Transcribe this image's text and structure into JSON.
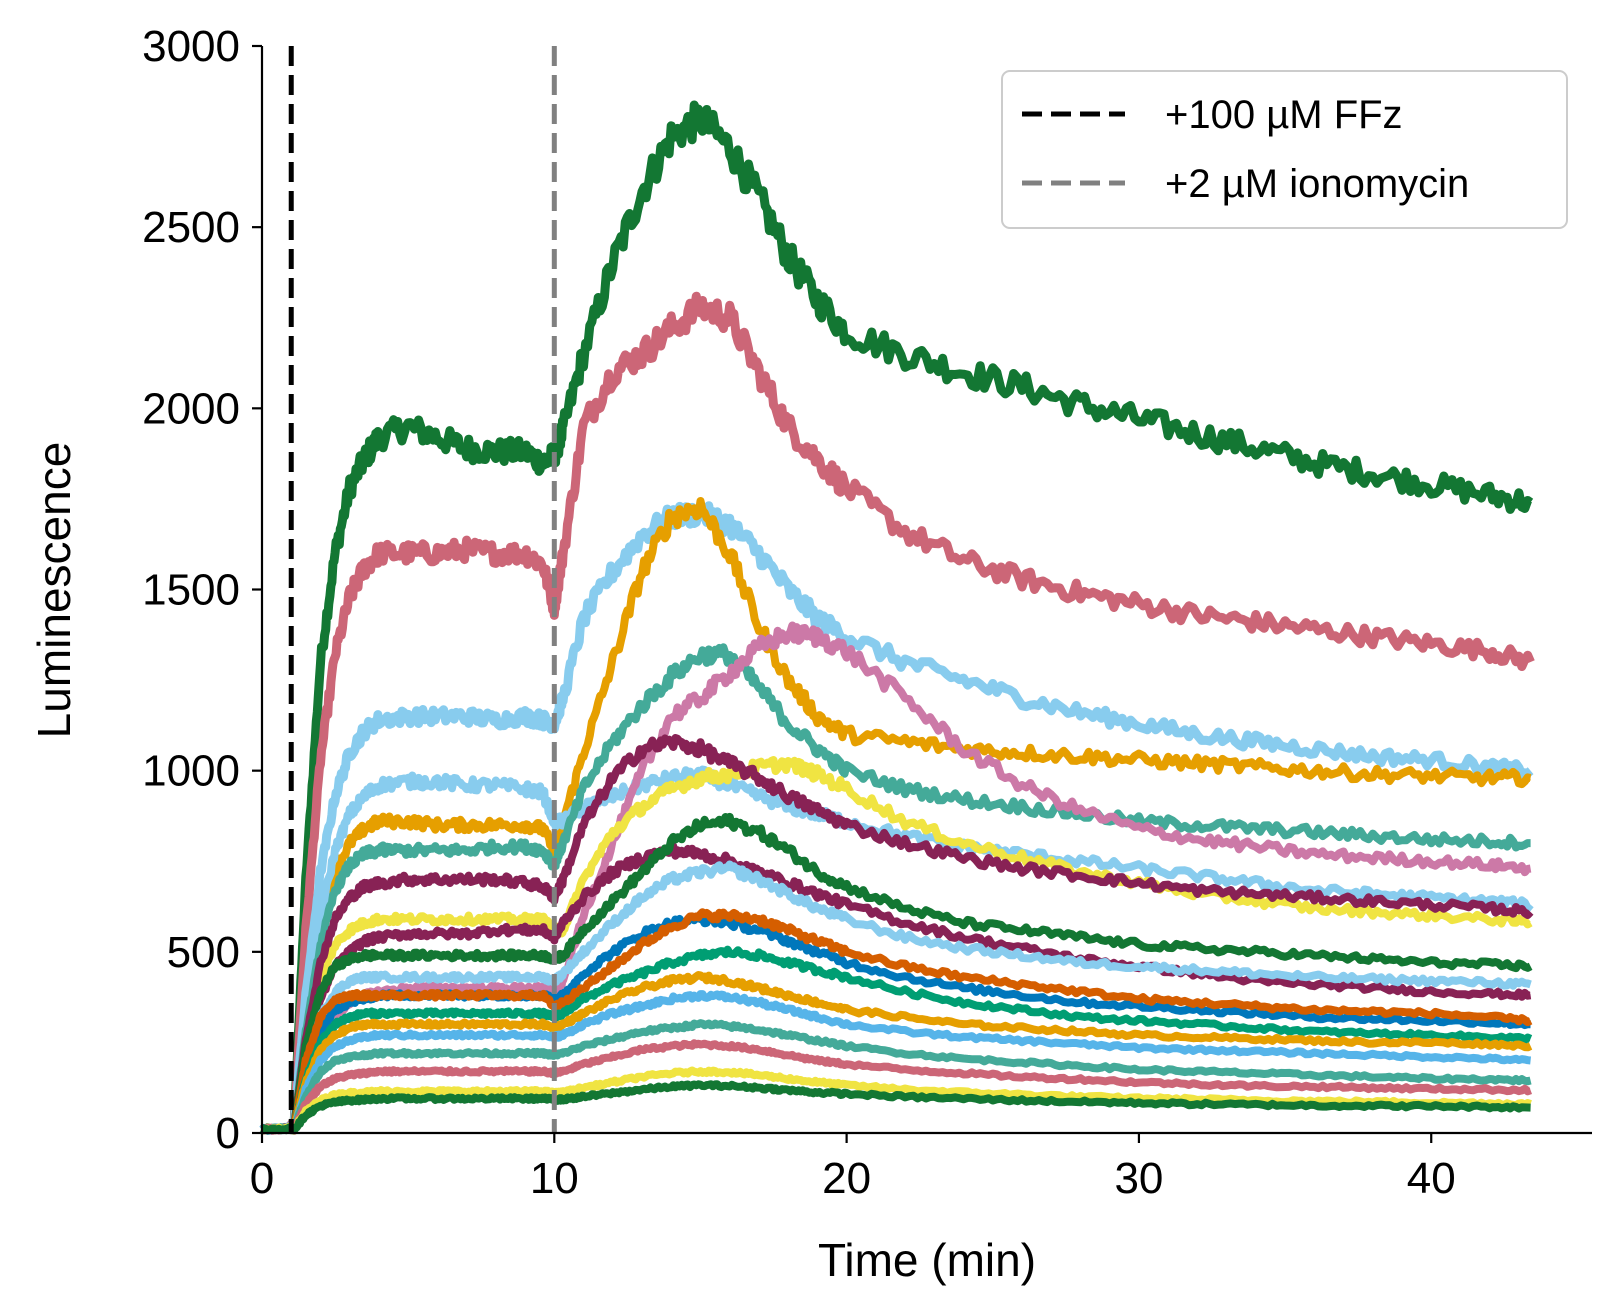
{
  "chart_data": {
    "type": "line",
    "xlabel": "Time (min)",
    "ylabel": "Luminescence",
    "xlim": [
      0,
      45.5
    ],
    "ylim": [
      0,
      3000
    ],
    "xticks": [
      0,
      10,
      20,
      30,
      40
    ],
    "yticks": [
      0,
      500,
      1000,
      1500,
      2000,
      2500,
      3000
    ],
    "grid": false,
    "legend_position": "top-right",
    "vlines": [
      {
        "label": "+100 µM FFz",
        "x": 1.0,
        "color": "#000000"
      },
      {
        "label": "+2 µM ionomycin",
        "x": 10.0,
        "color": "#808080"
      }
    ],
    "x": [
      0,
      0.9,
      1.1,
      1.5,
      2,
      2.5,
      3,
      3.5,
      4,
      5,
      6,
      7,
      8,
      9,
      9.6,
      10,
      10.3,
      11,
      12,
      13,
      14,
      15,
      16,
      17,
      18,
      19,
      20,
      22,
      24,
      26,
      28,
      30,
      32,
      34,
      36,
      38,
      40,
      42,
      43.4
    ],
    "series": [
      {
        "color": "#137733",
        "values": [
          10,
          12,
          30,
          700,
          1300,
          1600,
          1780,
          1860,
          1920,
          1950,
          1920,
          1890,
          1880,
          1880,
          1850,
          1870,
          1940,
          2150,
          2400,
          2600,
          2750,
          2800,
          2720,
          2580,
          2420,
          2300,
          2210,
          2150,
          2100,
          2060,
          2010,
          1970,
          1930,
          1890,
          1850,
          1820,
          1790,
          1760,
          1740
        ]
      },
      {
        "color": "#CC6677",
        "values": [
          10,
          12,
          30,
          560,
          1030,
          1320,
          1480,
          1560,
          1600,
          1600,
          1600,
          1610,
          1600,
          1600,
          1570,
          1450,
          1600,
          1950,
          2100,
          2150,
          2220,
          2280,
          2250,
          2100,
          1950,
          1860,
          1780,
          1660,
          1580,
          1530,
          1490,
          1460,
          1430,
          1410,
          1390,
          1370,
          1350,
          1330,
          1300
        ]
      },
      {
        "color": "#88CCEE",
        "values": [
          10,
          12,
          25,
          380,
          720,
          930,
          1050,
          1110,
          1140,
          1150,
          1150,
          1150,
          1140,
          1150,
          1140,
          1130,
          1200,
          1420,
          1550,
          1650,
          1700,
          1710,
          1680,
          1600,
          1500,
          1420,
          1370,
          1300,
          1250,
          1200,
          1160,
          1130,
          1100,
          1080,
          1060,
          1040,
          1030,
          1010,
          1000
        ]
      },
      {
        "color": "#E69F00",
        "values": [
          10,
          12,
          22,
          300,
          560,
          720,
          800,
          840,
          860,
          860,
          850,
          850,
          850,
          850,
          840,
          780,
          860,
          1050,
          1300,
          1550,
          1700,
          1730,
          1600,
          1400,
          1250,
          1150,
          1100,
          1080,
          1060,
          1050,
          1040,
          1030,
          1020,
          1010,
          1000,
          990,
          985,
          980,
          980
        ]
      },
      {
        "color": "#88CCEE",
        "values": [
          10,
          12,
          22,
          320,
          600,
          780,
          880,
          930,
          960,
          970,
          970,
          960,
          960,
          950,
          940,
          860,
          860,
          900,
          930,
          960,
          980,
          990,
          960,
          930,
          900,
          880,
          860,
          820,
          790,
          770,
          750,
          730,
          710,
          690,
          670,
          660,
          650,
          640,
          630
        ]
      },
      {
        "color": "#44AA99",
        "values": [
          10,
          12,
          20,
          280,
          520,
          670,
          740,
          770,
          780,
          780,
          780,
          780,
          790,
          790,
          780,
          740,
          800,
          950,
          1080,
          1180,
          1260,
          1320,
          1320,
          1230,
          1130,
          1060,
          1000,
          950,
          920,
          900,
          880,
          860,
          850,
          840,
          830,
          820,
          810,
          805,
          800
        ]
      },
      {
        "color": "#CC79A7",
        "values": [
          10,
          12,
          18,
          120,
          240,
          320,
          360,
          380,
          390,
          400,
          400,
          400,
          400,
          400,
          400,
          390,
          420,
          600,
          800,
          1000,
          1150,
          1200,
          1270,
          1340,
          1380,
          1370,
          1330,
          1200,
          1060,
          960,
          890,
          840,
          810,
          790,
          770,
          760,
          750,
          740,
          730
        ]
      },
      {
        "color": "#F0E442",
        "values": [
          10,
          12,
          18,
          250,
          420,
          520,
          560,
          580,
          590,
          590,
          590,
          590,
          590,
          590,
          590,
          560,
          560,
          700,
          830,
          900,
          950,
          980,
          990,
          1010,
          1020,
          990,
          950,
          860,
          800,
          760,
          720,
          690,
          660,
          640,
          620,
          610,
          600,
          590,
          580
        ]
      },
      {
        "color": "#882255",
        "values": [
          10,
          12,
          18,
          260,
          470,
          590,
          650,
          680,
          690,
          700,
          700,
          700,
          700,
          690,
          680,
          650,
          700,
          850,
          980,
          1060,
          1080,
          1060,
          1020,
          980,
          930,
          890,
          850,
          800,
          760,
          730,
          710,
          690,
          670,
          660,
          650,
          640,
          630,
          620,
          610
        ]
      },
      {
        "color": "#882255",
        "values": [
          10,
          12,
          16,
          200,
          370,
          460,
          500,
          530,
          540,
          550,
          550,
          550,
          560,
          560,
          560,
          540,
          580,
          650,
          720,
          760,
          780,
          770,
          750,
          720,
          690,
          660,
          630,
          580,
          540,
          510,
          480,
          460,
          440,
          420,
          410,
          400,
          390,
          385,
          380
        ]
      },
      {
        "color": "#137733",
        "values": [
          10,
          12,
          16,
          240,
          390,
          460,
          480,
          490,
          490,
          490,
          490,
          490,
          490,
          490,
          490,
          480,
          490,
          560,
          640,
          720,
          800,
          850,
          860,
          830,
          780,
          720,
          680,
          620,
          580,
          560,
          540,
          520,
          510,
          500,
          490,
          480,
          470,
          465,
          460
        ]
      },
      {
        "color": "#88CCEE",
        "values": [
          10,
          12,
          15,
          180,
          320,
          390,
          420,
          430,
          430,
          430,
          430,
          430,
          430,
          430,
          430,
          420,
          440,
          500,
          580,
          650,
          700,
          720,
          730,
          700,
          660,
          620,
          590,
          540,
          510,
          490,
          470,
          460,
          450,
          440,
          430,
          425,
          420,
          415,
          410
        ]
      },
      {
        "color": "#0077BB",
        "values": [
          10,
          12,
          14,
          160,
          280,
          340,
          360,
          370,
          380,
          380,
          380,
          380,
          380,
          380,
          380,
          370,
          380,
          440,
          500,
          550,
          580,
          590,
          580,
          560,
          530,
          500,
          470,
          430,
          400,
          380,
          360,
          350,
          340,
          330,
          320,
          315,
          310,
          305,
          300
        ]
      },
      {
        "color": "#D55E00",
        "values": [
          10,
          12,
          14,
          200,
          320,
          370,
          380,
          380,
          380,
          380,
          380,
          380,
          380,
          380,
          380,
          350,
          360,
          400,
          460,
          520,
          570,
          600,
          600,
          590,
          560,
          530,
          500,
          460,
          430,
          410,
          390,
          370,
          360,
          350,
          340,
          335,
          330,
          320,
          310
        ]
      },
      {
        "color": "#009E73",
        "values": [
          10,
          12,
          13,
          150,
          250,
          300,
          320,
          330,
          330,
          330,
          330,
          330,
          330,
          330,
          330,
          320,
          330,
          370,
          410,
          440,
          470,
          490,
          500,
          490,
          470,
          450,
          430,
          390,
          360,
          340,
          320,
          310,
          300,
          290,
          280,
          275,
          270,
          265,
          260
        ]
      },
      {
        "color": "#E69F00",
        "values": [
          10,
          12,
          13,
          140,
          230,
          270,
          290,
          300,
          300,
          300,
          300,
          300,
          300,
          300,
          300,
          290,
          300,
          330,
          370,
          400,
          420,
          430,
          420,
          400,
          380,
          360,
          340,
          320,
          300,
          290,
          280,
          270,
          265,
          260,
          255,
          250,
          250,
          245,
          240
        ]
      },
      {
        "color": "#56B4E9",
        "values": [
          10,
          12,
          12,
          120,
          200,
          240,
          255,
          265,
          270,
          270,
          270,
          270,
          270,
          270,
          270,
          265,
          270,
          300,
          330,
          350,
          370,
          380,
          375,
          360,
          340,
          320,
          300,
          280,
          265,
          255,
          245,
          235,
          230,
          225,
          220,
          215,
          210,
          205,
          200
        ]
      },
      {
        "color": "#44AA99",
        "values": [
          10,
          12,
          11,
          100,
          170,
          200,
          210,
          215,
          220,
          220,
          220,
          220,
          220,
          220,
          220,
          215,
          220,
          240,
          260,
          280,
          290,
          300,
          295,
          285,
          270,
          255,
          240,
          220,
          205,
          195,
          185,
          175,
          170,
          165,
          160,
          155,
          150,
          148,
          145
        ]
      },
      {
        "color": "#CC6677",
        "values": [
          10,
          12,
          10,
          80,
          130,
          150,
          160,
          165,
          170,
          170,
          170,
          170,
          170,
          170,
          170,
          165,
          170,
          190,
          210,
          230,
          240,
          245,
          240,
          230,
          215,
          200,
          190,
          175,
          165,
          155,
          148,
          140,
          135,
          130,
          128,
          125,
          122,
          120,
          118
        ]
      },
      {
        "color": "#F0E442",
        "values": [
          10,
          12,
          10,
          60,
          90,
          105,
          110,
          112,
          115,
          115,
          115,
          115,
          115,
          115,
          115,
          110,
          112,
          125,
          140,
          155,
          165,
          170,
          168,
          160,
          150,
          140,
          132,
          120,
          112,
          106,
          100,
          96,
          93,
          90,
          88,
          86,
          84,
          82,
          80
        ]
      },
      {
        "color": "#137733",
        "values": [
          10,
          12,
          10,
          50,
          75,
          85,
          90,
          92,
          95,
          95,
          95,
          95,
          95,
          95,
          95,
          92,
          93,
          100,
          110,
          120,
          128,
          132,
          130,
          125,
          118,
          112,
          108,
          100,
          95,
          90,
          86,
          83,
          80,
          78,
          76,
          75,
          74,
          72,
          70
        ]
      }
    ]
  },
  "legend": {
    "items": [
      {
        "label": "+100 µM FFz",
        "color": "#000000"
      },
      {
        "label": "+2 µM ionomycin",
        "color": "#808080"
      }
    ]
  }
}
